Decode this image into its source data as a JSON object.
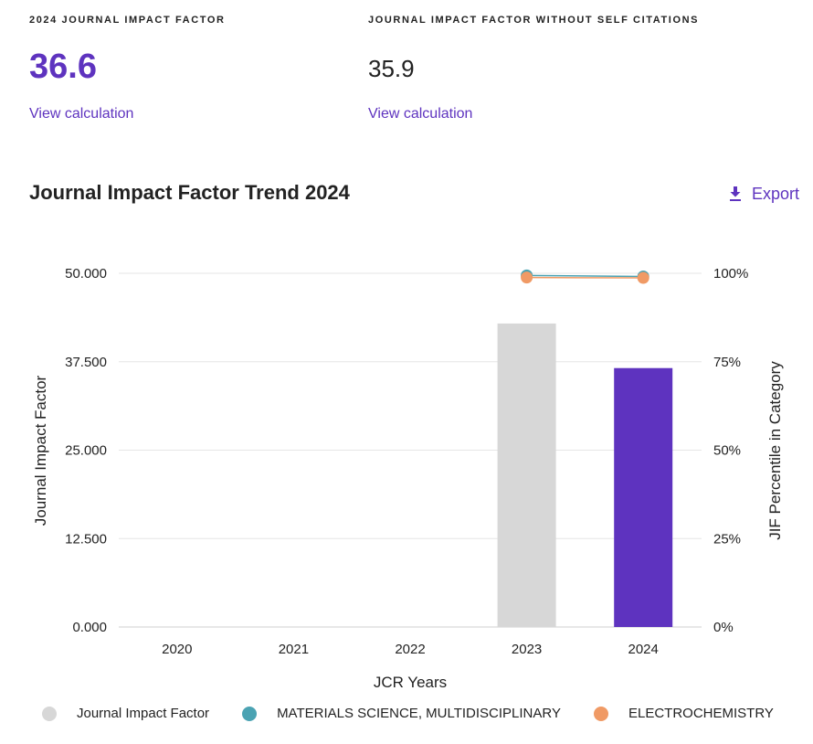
{
  "metrics": {
    "jif": {
      "label": "2024 JOURNAL IMPACT FACTOR",
      "value": "36.6",
      "link": "View calculation"
    },
    "jif_no_self": {
      "label": "JOURNAL IMPACT FACTOR WITHOUT SELF CITATIONS",
      "value": "35.9",
      "link": "View calculation"
    }
  },
  "section": {
    "title": "Journal Impact Factor Trend 2024",
    "export_label": "Export",
    "export_icon": "download-icon"
  },
  "colors": {
    "accent": "#5e33bf",
    "bar_past": "#d7d7d7",
    "bar_current": "#5e33bf",
    "materials": "#4ba3b3",
    "electrochem": "#f09a65",
    "grid": "#e6e6e6"
  },
  "chart_data": {
    "type": "bar",
    "xlabel": "JCR Years",
    "ylabel": "Journal Impact Factor",
    "y2label": "JIF Percentile in Category",
    "categories": [
      "2020",
      "2021",
      "2022",
      "2023",
      "2024"
    ],
    "ylim": [
      0,
      50
    ],
    "y_ticks": [
      "0.000",
      "12.500",
      "25.000",
      "37.500",
      "50.000"
    ],
    "y2lim": [
      0,
      100
    ],
    "y2_ticks": [
      "0%",
      "25%",
      "50%",
      "75%",
      "100%"
    ],
    "grid": true,
    "legend_position": "bottom",
    "series": [
      {
        "name": "Journal Impact Factor",
        "kind": "bar",
        "values": [
          null,
          null,
          null,
          42.9,
          36.6
        ]
      },
      {
        "name": "MATERIALS SCIENCE, MULTIDISCIPLINARY",
        "kind": "line",
        "axis": "percentile",
        "values": [
          null,
          null,
          null,
          99.4,
          99.1
        ]
      },
      {
        "name": "ELECTROCHEMISTRY",
        "kind": "line",
        "axis": "percentile",
        "values": [
          null,
          null,
          null,
          98.8,
          98.7
        ]
      }
    ]
  }
}
